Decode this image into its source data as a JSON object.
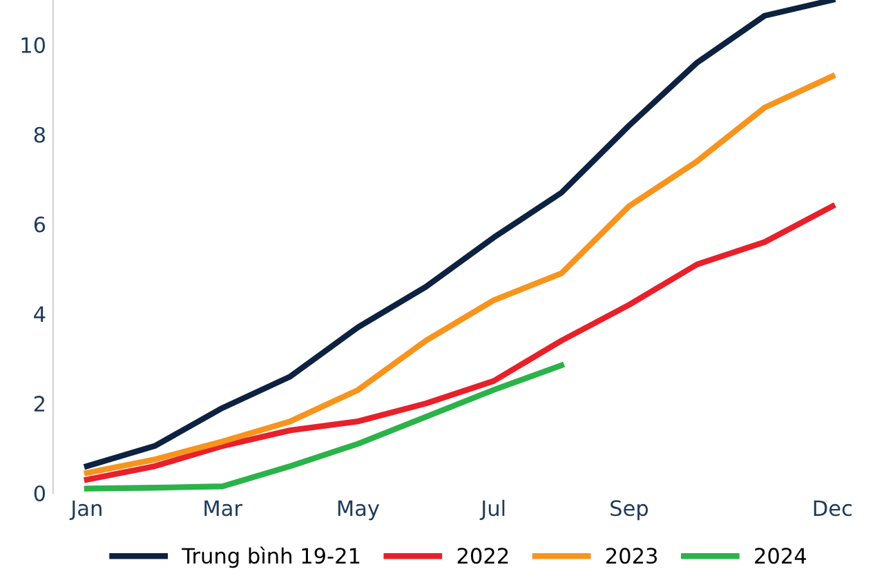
{
  "chart_data": {
    "type": "line",
    "categories": [
      "Jan",
      null,
      "Mar",
      null,
      "May",
      null,
      "Jul",
      null,
      "Sep",
      null,
      null,
      "Dec"
    ],
    "series": [
      {
        "name": "Trung bình 19-21",
        "color": "#0d2240",
        "values": [
          0.6,
          1.05,
          1.9,
          2.6,
          3.7,
          4.6,
          5.7,
          6.7,
          8.2,
          9.6,
          10.65,
          11.0
        ]
      },
      {
        "name": "2022",
        "color": "#e8202a",
        "values": [
          0.3,
          0.6,
          1.05,
          1.4,
          1.6,
          2.0,
          2.5,
          3.4,
          4.2,
          5.1,
          5.6,
          6.4
        ]
      },
      {
        "name": "2023",
        "color": "#f7941d",
        "values": [
          0.45,
          0.75,
          1.15,
          1.6,
          2.3,
          3.4,
          4.3,
          4.9,
          6.4,
          7.4,
          8.6,
          9.3
        ]
      },
      {
        "name": "2024",
        "color": "#2bb34a",
        "values": [
          0.1,
          0.12,
          0.15,
          0.6,
          1.1,
          1.7,
          2.3,
          2.85,
          null,
          null,
          null,
          null
        ]
      }
    ],
    "ylim": [
      0,
      11
    ],
    "yticks": [
      0,
      2,
      4,
      6,
      8,
      10
    ],
    "grid": false,
    "legend": "bottom",
    "marker": "none",
    "line_style": "solid"
  }
}
